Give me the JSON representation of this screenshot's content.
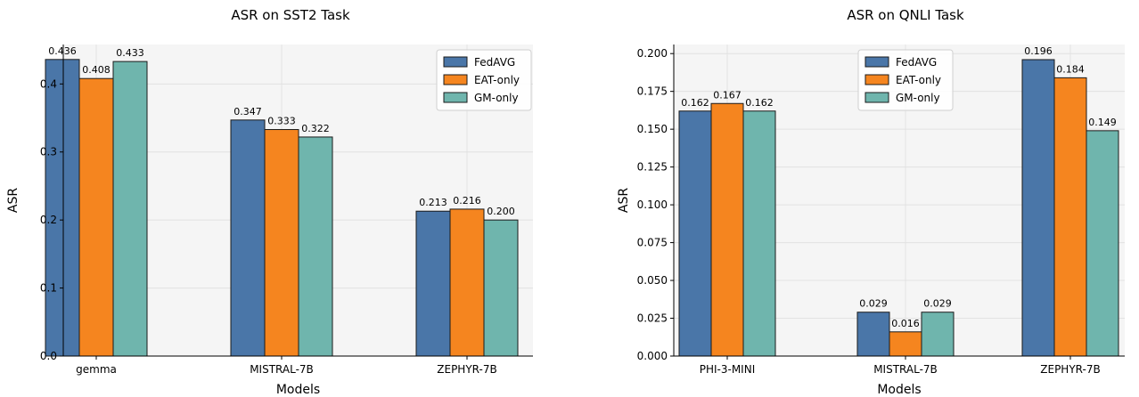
{
  "chart_data": [
    {
      "type": "bar",
      "title": "ASR on SST2 Task",
      "xlabel": "Models",
      "ylabel": "ASR",
      "categories": [
        "gemma",
        "MISTRAL-7B",
        "ZEPHYR-7B"
      ],
      "series": [
        {
          "name": "FedAVG",
          "values": [
            0.436,
            0.347,
            0.213
          ],
          "labels": [
            "0.436",
            "0.347",
            "0.213"
          ]
        },
        {
          "name": "EAT-only",
          "values": [
            0.408,
            0.333,
            0.216
          ],
          "labels": [
            "0.408",
            "0.333",
            "0.216"
          ]
        },
        {
          "name": "GM-only",
          "values": [
            0.433,
            0.322,
            0.2
          ],
          "labels": [
            "0.433",
            "0.322",
            "0.200"
          ]
        }
      ],
      "ylim": [
        0,
        0.458
      ],
      "yticks": [
        0.0,
        0.1,
        0.2,
        0.3,
        0.4
      ],
      "ytick_labels": [
        "0.0",
        "0.1",
        "0.2",
        "0.3",
        "0.4"
      ],
      "grid": true,
      "legend_position": "top-right"
    },
    {
      "type": "bar",
      "title": "ASR on QNLI Task",
      "xlabel": "Models",
      "ylabel": "ASR",
      "categories": [
        "PHI-3-MINI",
        "MISTRAL-7B",
        "ZEPHYR-7B"
      ],
      "series": [
        {
          "name": "FedAVG",
          "values": [
            0.162,
            0.029,
            0.196
          ],
          "labels": [
            "0.162",
            "0.029",
            "0.196"
          ]
        },
        {
          "name": "EAT-only",
          "values": [
            0.167,
            0.016,
            0.184
          ],
          "labels": [
            "0.167",
            "0.016",
            "0.184"
          ]
        },
        {
          "name": "GM-only",
          "values": [
            0.162,
            0.029,
            0.149
          ],
          "labels": [
            "0.162",
            "0.029",
            "0.149"
          ]
        }
      ],
      "ylim": [
        0,
        0.206
      ],
      "yticks": [
        0.0,
        0.025,
        0.05,
        0.075,
        0.1,
        0.125,
        0.15,
        0.175,
        0.2
      ],
      "ytick_labels": [
        "0.000",
        "0.025",
        "0.050",
        "0.075",
        "0.100",
        "0.125",
        "0.150",
        "0.175",
        "0.200"
      ],
      "grid": true,
      "legend_position": "top-center"
    }
  ],
  "colors": {
    "FedAVG": "#4a76a8",
    "EAT-only": "#f5851f",
    "GM-only": "#6fb5ad"
  }
}
